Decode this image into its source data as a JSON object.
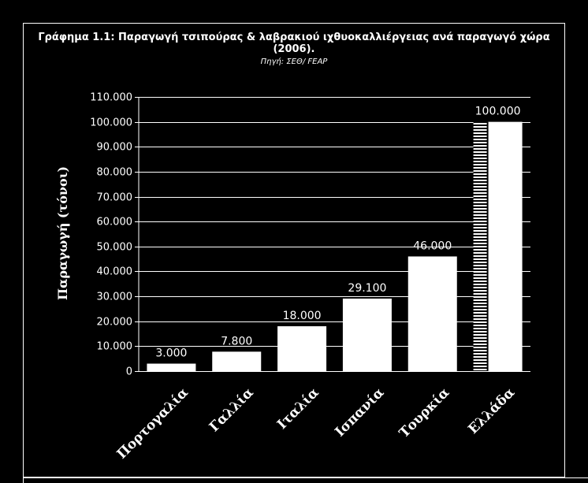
{
  "chart_data": {
    "type": "bar",
    "title_line1": "Γράφημα 1.1: Παραγωγή τσιπούρας & λαβρακιού ιχθυοκαλλιέργειας ανά παραγωγό χώρα",
    "title_line2": "(2006).",
    "source": "Πηγή: ΣΕΘ/ FEAP",
    "ylabel": "Παραγωγή (τόνοι)",
    "xlabel": "",
    "categories": [
      "Πορτογαλία",
      "Γαλλία",
      "Ιταλία",
      "Ισπανία",
      "Τουρκία",
      "Ελλάδα"
    ],
    "values": [
      3000,
      7800,
      18000,
      29100,
      46000,
      100000
    ],
    "value_labels": [
      "3.000",
      "7.800",
      "18.000",
      "29.100",
      "46.000",
      "100.000"
    ],
    "ylim": [
      0,
      110000
    ],
    "yticks": [
      0,
      10000,
      20000,
      30000,
      40000,
      50000,
      60000,
      70000,
      80000,
      90000,
      100000,
      110000
    ],
    "ytick_labels": [
      "0",
      "10.000",
      "20.000",
      "30.000",
      "40.000",
      "50.000",
      "60.000",
      "70.000",
      "80.000",
      "90.000",
      "100.000",
      "110.000"
    ],
    "grid": true,
    "legend": "none",
    "colors": {
      "background": "#000000",
      "bar": "#ffffff",
      "text": "#ffffff",
      "grid": "#ffffff",
      "highlight_pattern": "#000000"
    }
  }
}
